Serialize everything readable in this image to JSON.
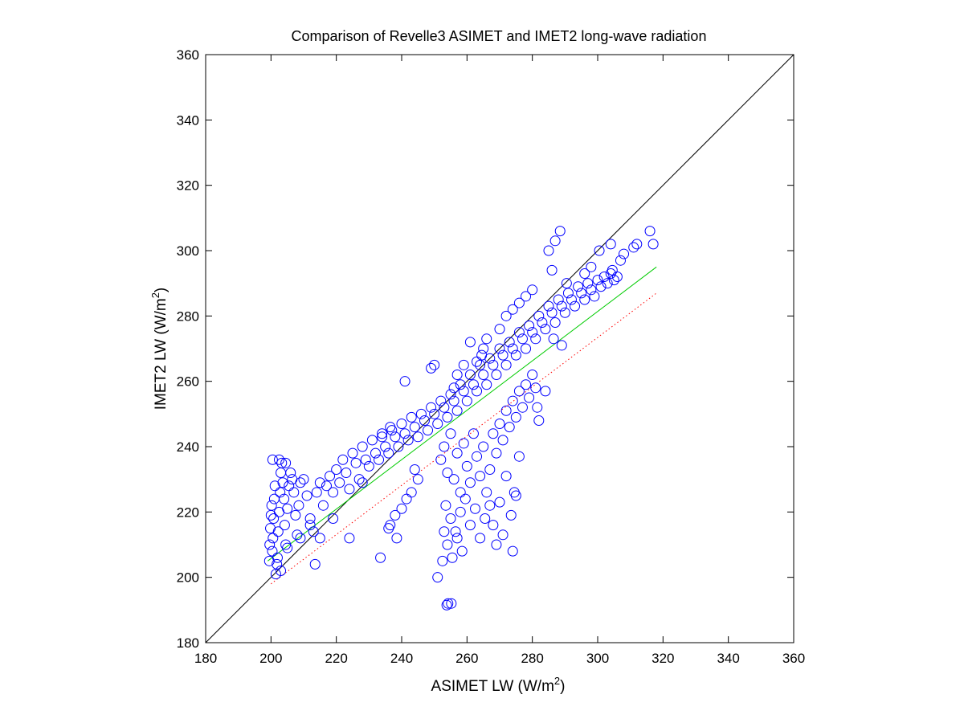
{
  "chart_data": {
    "type": "scatter",
    "title": "Comparison of Revelle3 ASIMET and IMET2 long-wave radiation",
    "xlabel": "ASIMET LW (W/m",
    "xlabel_sup": "2",
    "xlabel_close": ")",
    "ylabel": "IMET2 LW (W/m",
    "ylabel_sup": "2",
    "ylabel_close": ")",
    "xlim": [
      180,
      360
    ],
    "ylim": [
      180,
      360
    ],
    "xticks": [
      180,
      200,
      220,
      240,
      260,
      280,
      300,
      320,
      340,
      360
    ],
    "yticks": [
      180,
      200,
      220,
      240,
      260,
      280,
      300,
      320,
      340,
      360
    ],
    "grid": false,
    "legend": "none",
    "marker": "open circle",
    "colors": {
      "points": "#0000ff",
      "one_to_one": "#000000",
      "fit": "#00cc00",
      "fit_offset": "#ff0000"
    },
    "lines": [
      {
        "style": "solid",
        "color": "#000000",
        "x": [
          180,
          360
        ],
        "y": [
          180,
          360
        ]
      },
      {
        "style": "solid",
        "color": "#00cc00",
        "x": [
          199,
          318
        ],
        "y": [
          205,
          295
        ]
      },
      {
        "style": "dotted",
        "color": "#ff0000",
        "x": [
          200,
          318
        ],
        "y": [
          198,
          287
        ]
      }
    ],
    "series": [
      {
        "points": [
          [
            199.5,
            205
          ],
          [
            199.6,
            210
          ],
          [
            199.8,
            215
          ],
          [
            200.0,
            219
          ],
          [
            200.2,
            222
          ],
          [
            200.4,
            208
          ],
          [
            200.6,
            212
          ],
          [
            200.8,
            218
          ],
          [
            201.0,
            224
          ],
          [
            201.2,
            228
          ],
          [
            201.5,
            201
          ],
          [
            201.8,
            204
          ],
          [
            202.0,
            206
          ],
          [
            202.2,
            214
          ],
          [
            202.5,
            220
          ],
          [
            202.8,
            226
          ],
          [
            203.0,
            232
          ],
          [
            203.3,
            235
          ],
          [
            203.6,
            229
          ],
          [
            204.0,
            224
          ],
          [
            204.2,
            216
          ],
          [
            204.5,
            210
          ],
          [
            205.0,
            221
          ],
          [
            205.5,
            228
          ],
          [
            206.0,
            232
          ],
          [
            206.5,
            230
          ],
          [
            207.0,
            226
          ],
          [
            207.5,
            219
          ],
          [
            208.0,
            213
          ],
          [
            208.5,
            222
          ],
          [
            209.0,
            229
          ],
          [
            210.0,
            230
          ],
          [
            211.0,
            225
          ],
          [
            212.0,
            218
          ],
          [
            213.0,
            214
          ],
          [
            213.5,
            204
          ],
          [
            214.0,
            226
          ],
          [
            215.0,
            229
          ],
          [
            216.0,
            222
          ],
          [
            217.0,
            228
          ],
          [
            218.0,
            231
          ],
          [
            219.0,
            226
          ],
          [
            220.0,
            233
          ],
          [
            221.0,
            229
          ],
          [
            222.0,
            236
          ],
          [
            223.0,
            232
          ],
          [
            224.0,
            227
          ],
          [
            225.0,
            238
          ],
          [
            226.0,
            235
          ],
          [
            227.0,
            230
          ],
          [
            228.0,
            240
          ],
          [
            229.0,
            236
          ],
          [
            230.0,
            234
          ],
          [
            231.0,
            242
          ],
          [
            232.0,
            238
          ],
          [
            233.0,
            236
          ],
          [
            234.0,
            244
          ],
          [
            235.0,
            240
          ],
          [
            236.0,
            238
          ],
          [
            237.0,
            245
          ],
          [
            238.0,
            243
          ],
          [
            239.0,
            240
          ],
          [
            240.0,
            247
          ],
          [
            241.0,
            244
          ],
          [
            242.0,
            242
          ],
          [
            243.0,
            249
          ],
          [
            244.0,
            246
          ],
          [
            245.0,
            243
          ],
          [
            246.0,
            250
          ],
          [
            247.0,
            248
          ],
          [
            248.0,
            245
          ],
          [
            249.0,
            252
          ],
          [
            250.0,
            250
          ],
          [
            251.0,
            247
          ],
          [
            252.0,
            254
          ],
          [
            253.0,
            252
          ],
          [
            254.0,
            249
          ],
          [
            255.0,
            256
          ],
          [
            256.0,
            254
          ],
          [
            257.0,
            251
          ],
          [
            258.0,
            259
          ],
          [
            259.0,
            257
          ],
          [
            260.0,
            254
          ],
          [
            261.0,
            262
          ],
          [
            262.0,
            259
          ],
          [
            263.0,
            257
          ],
          [
            264.0,
            265
          ],
          [
            265.0,
            262
          ],
          [
            266.0,
            259
          ],
          [
            267.0,
            267
          ],
          [
            268.0,
            265
          ],
          [
            269.0,
            262
          ],
          [
            270.0,
            270
          ],
          [
            271.0,
            268
          ],
          [
            272.0,
            265
          ],
          [
            273.0,
            272
          ],
          [
            274.0,
            270
          ],
          [
            275.0,
            268
          ],
          [
            276.0,
            275
          ],
          [
            277.0,
            273
          ],
          [
            278.0,
            270
          ],
          [
            279.0,
            277
          ],
          [
            280.0,
            275
          ],
          [
            281.0,
            273
          ],
          [
            282.0,
            280
          ],
          [
            283.0,
            278
          ],
          [
            284.0,
            276
          ],
          [
            285.0,
            283
          ],
          [
            286.0,
            281
          ],
          [
            287.0,
            278
          ],
          [
            288.0,
            285
          ],
          [
            289.0,
            283
          ],
          [
            290.0,
            281
          ],
          [
            291.0,
            287
          ],
          [
            292.0,
            285
          ],
          [
            293.0,
            283
          ],
          [
            294.0,
            289
          ],
          [
            295.0,
            287
          ],
          [
            296.0,
            285
          ],
          [
            297.0,
            290
          ],
          [
            298.0,
            288
          ],
          [
            299.0,
            286
          ],
          [
            300.0,
            291
          ],
          [
            301.0,
            289
          ],
          [
            302.0,
            292
          ],
          [
            303.0,
            290
          ],
          [
            304.0,
            293
          ],
          [
            305.0,
            291
          ],
          [
            306.0,
            292
          ],
          [
            304.5,
            294
          ],
          [
            252.0,
            236
          ],
          [
            253.0,
            240
          ],
          [
            254.0,
            232
          ],
          [
            255.0,
            244
          ],
          [
            256.0,
            230
          ],
          [
            257.0,
            238
          ],
          [
            258.0,
            226
          ],
          [
            259.0,
            241
          ],
          [
            260.0,
            234
          ],
          [
            261.0,
            229
          ],
          [
            262.0,
            244
          ],
          [
            263.0,
            237
          ],
          [
            264.0,
            231
          ],
          [
            265.0,
            240
          ],
          [
            266.0,
            226
          ],
          [
            267.0,
            233
          ],
          [
            268.0,
            244
          ],
          [
            269.0,
            238
          ],
          [
            270.0,
            247
          ],
          [
            271.0,
            242
          ],
          [
            272.0,
            251
          ],
          [
            273.0,
            246
          ],
          [
            274.0,
            254
          ],
          [
            275.0,
            249
          ],
          [
            276.0,
            257
          ],
          [
            277.0,
            252
          ],
          [
            278.0,
            259
          ],
          [
            279.0,
            255
          ],
          [
            280.0,
            262
          ],
          [
            281.0,
            258
          ],
          [
            253.5,
            222
          ],
          [
            255.0,
            218
          ],
          [
            256.5,
            214
          ],
          [
            258.0,
            220
          ],
          [
            259.5,
            224
          ],
          [
            261.0,
            216
          ],
          [
            262.5,
            221
          ],
          [
            264.0,
            212
          ],
          [
            265.5,
            218
          ],
          [
            267.0,
            222
          ],
          [
            254.0,
            210
          ],
          [
            255.5,
            206
          ],
          [
            257.0,
            212
          ],
          [
            258.5,
            208
          ],
          [
            253.0,
            214
          ],
          [
            251.0,
            200
          ],
          [
            252.5,
            205
          ],
          [
            254.2,
            192
          ],
          [
            255.2,
            192
          ],
          [
            253.8,
            191.5
          ],
          [
            274.0,
            208
          ],
          [
            269.0,
            210
          ],
          [
            271.0,
            213
          ],
          [
            268.0,
            216
          ],
          [
            273.5,
            219
          ],
          [
            270.0,
            223
          ],
          [
            274.5,
            226
          ],
          [
            272.0,
            231
          ],
          [
            275.0,
            225
          ],
          [
            276.0,
            237
          ],
          [
            233.5,
            206
          ],
          [
            236.0,
            215
          ],
          [
            238.0,
            219
          ],
          [
            240.0,
            221
          ],
          [
            241.5,
            224
          ],
          [
            243.0,
            226
          ],
          [
            245.0,
            230
          ],
          [
            244.0,
            233
          ],
          [
            238.5,
            212
          ],
          [
            236.5,
            216
          ],
          [
            286.0,
            294
          ],
          [
            287.0,
            303
          ],
          [
            288.5,
            306
          ],
          [
            285.0,
            300
          ],
          [
            290.5,
            290
          ],
          [
            289.0,
            271
          ],
          [
            286.5,
            273
          ],
          [
            284.0,
            257
          ],
          [
            282.0,
            248
          ],
          [
            281.5,
            252
          ],
          [
            280.0,
            288
          ],
          [
            278.0,
            286
          ],
          [
            276.0,
            284
          ],
          [
            274.0,
            282
          ],
          [
            272.0,
            280
          ],
          [
            270.0,
            276
          ],
          [
            266.0,
            273
          ],
          [
            265.0,
            270
          ],
          [
            264.5,
            268
          ],
          [
            263.0,
            266
          ],
          [
            261.0,
            272
          ],
          [
            259.0,
            265
          ],
          [
            257.0,
            262
          ],
          [
            256.0,
            258
          ],
          [
            249.0,
            264
          ],
          [
            250.0,
            265
          ],
          [
            241.0,
            260
          ],
          [
            236.5,
            246
          ],
          [
            234.0,
            243
          ],
          [
            228.0,
            229
          ],
          [
            224.0,
            212
          ],
          [
            219.0,
            218
          ],
          [
            215.0,
            212
          ],
          [
            212.0,
            216
          ],
          [
            209.0,
            212
          ],
          [
            205.0,
            209
          ],
          [
            202.5,
            236
          ],
          [
            200.5,
            236
          ],
          [
            204.5,
            235
          ],
          [
            203.0,
            202
          ],
          [
            300.5,
            300
          ],
          [
            304.0,
            302
          ],
          [
            308.0,
            299
          ],
          [
            311.0,
            301
          ],
          [
            312.0,
            302
          ],
          [
            316.0,
            306
          ],
          [
            317.0,
            302
          ],
          [
            307.0,
            297
          ],
          [
            298.0,
            295
          ],
          [
            296.0,
            293
          ]
        ]
      }
    ]
  }
}
